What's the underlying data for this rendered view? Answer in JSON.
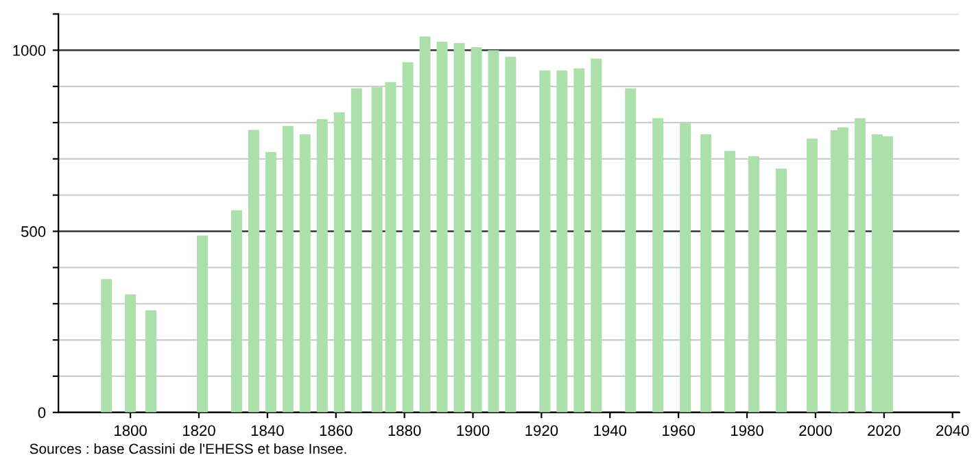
{
  "chart_data": {
    "type": "bar",
    "x": [
      1793,
      1800,
      1806,
      1821,
      1831,
      1836,
      1841,
      1846,
      1851,
      1856,
      1861,
      1866,
      1872,
      1876,
      1881,
      1886,
      1891,
      1896,
      1901,
      1906,
      1911,
      1921,
      1926,
      1931,
      1936,
      1946,
      1954,
      1962,
      1968,
      1975,
      1982,
      1990,
      1999,
      2006,
      2008,
      2013,
      2018,
      2021
    ],
    "values": [
      368,
      326,
      282,
      488,
      558,
      780,
      719,
      791,
      768,
      810,
      829,
      895,
      898,
      912,
      967,
      1038,
      1023,
      1020,
      1008,
      1000,
      982,
      944,
      944,
      950,
      977,
      895,
      812,
      798,
      768,
      722,
      707,
      673,
      756,
      779,
      787,
      812,
      768,
      762
    ],
    "color": "#abe0ab",
    "xlim": [
      1779,
      2042
    ],
    "xticks": [
      1800,
      1820,
      1840,
      1860,
      1880,
      1900,
      1920,
      1940,
      1960,
      1980,
      2000,
      2020,
      2040
    ],
    "ylim": [
      0,
      1100
    ],
    "yticks": [
      0,
      {
        "value": 100,
        "label": null
      },
      {
        "value": 200,
        "label": null
      },
      {
        "value": 300,
        "label": null
      },
      {
        "value": 400,
        "label": null
      },
      500,
      {
        "value": 600,
        "label": null
      },
      {
        "value": 700,
        "label": null
      },
      {
        "value": 800,
        "label": null
      },
      {
        "value": 900,
        "label": null
      },
      1000,
      {
        "value": 1100,
        "label": null
      }
    ],
    "grid": "y",
    "annotations": [
      "Sources : base Cassini de l'EHESS et base Insee."
    ]
  }
}
